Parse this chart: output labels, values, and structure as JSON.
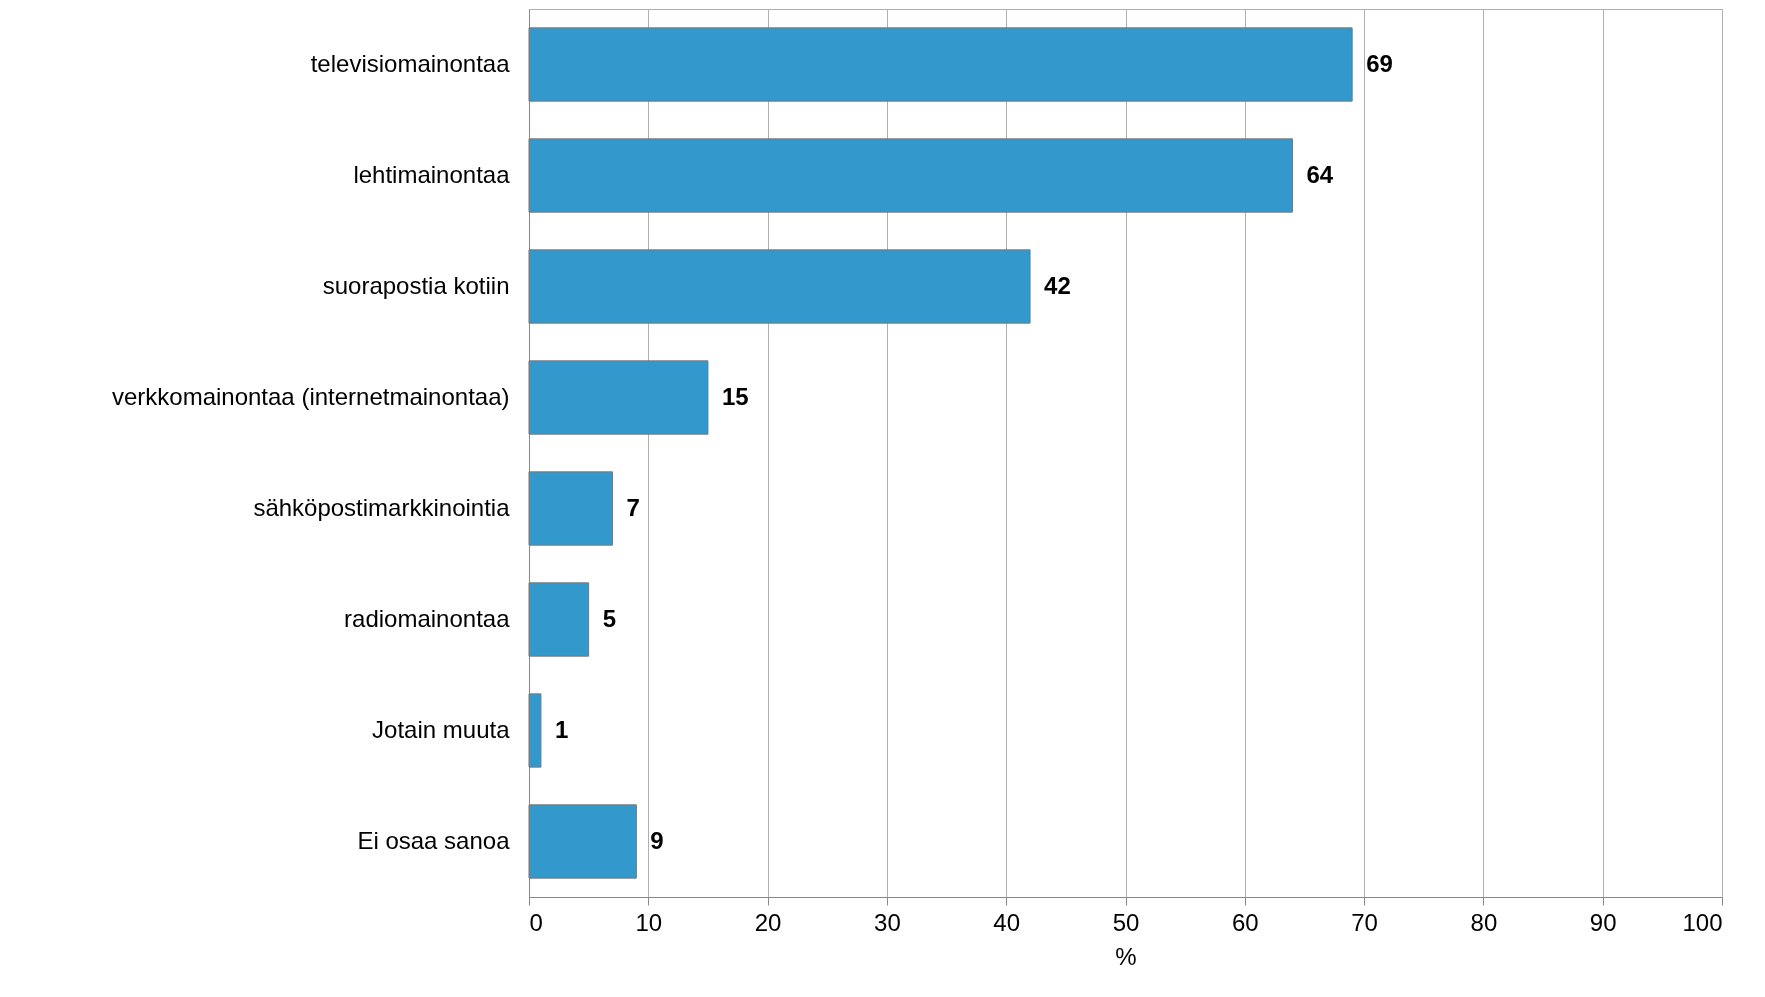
{
  "chart_data": {
    "type": "bar",
    "orientation": "horizontal",
    "xlabel": "%",
    "categories": [
      "televisiomainontaa",
      "lehtimainontaa",
      "suorapostia kotiin",
      "verkkomainontaa (internetmainontaa)",
      "sähköpostimarkkinointia",
      "radiomainontaa",
      "Jotain muuta",
      "Ei osaa sanoa"
    ],
    "values": [
      69,
      64,
      42,
      15,
      7,
      5,
      1,
      9
    ],
    "color": "#3399cc",
    "xlim": [
      0,
      100
    ],
    "xticks": [
      0,
      10,
      20,
      30,
      40,
      50,
      60,
      70,
      80,
      90,
      100
    ],
    "grid": "x",
    "data_labels": true
  }
}
